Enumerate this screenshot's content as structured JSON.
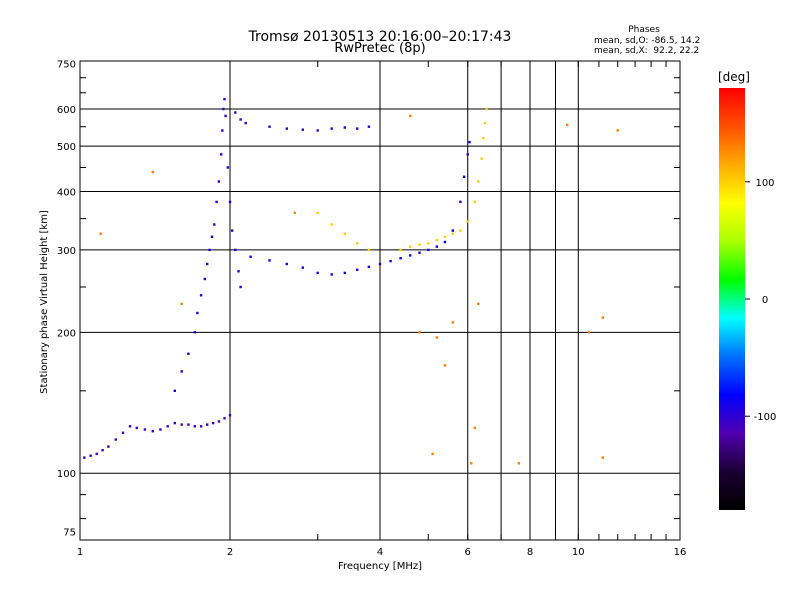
{
  "chart_data": {
    "type": "scatter",
    "title": "Tromsø 20130513 20:16:00–20:17:43",
    "subtitle": "RwPretec (8p)",
    "xlabel": "Frequency [MHz]",
    "ylabel": "Stationary phase Virtual Height [km]",
    "x_scale": "log",
    "y_scale": "log",
    "xlim": [
      1,
      16
    ],
    "ylim": [
      72,
      760
    ],
    "x_ticks": [
      1,
      2,
      4,
      6,
      8,
      10,
      16
    ],
    "y_ticks": [
      75,
      100,
      200,
      300,
      400,
      500,
      600,
      750
    ],
    "x_minor_lines": [
      7,
      9
    ],
    "grid": true,
    "stats": {
      "title": "Phases",
      "line1": "mean, sd,O: -86.5, 14.2",
      "line2": "mean, sd,X:  92.2, 22.2"
    },
    "colorbar": {
      "label": "[deg]",
      "range": [
        -180,
        180
      ],
      "ticks": [
        -100,
        0,
        100
      ],
      "tick_labels": [
        "-100",
        "0",
        "100"
      ],
      "colormap": [
        "#000000",
        "#1a0033",
        "#5000b0",
        "#0000ff",
        "#0070ff",
        "#00ffff",
        "#00ff00",
        "#aaff00",
        "#ffff00",
        "#ffaa00",
        "#ff5000",
        "#ff0000"
      ]
    },
    "series": [
      {
        "trace": "o-mode-low",
        "phase": -105,
        "points": [
          [
            1.02,
            108
          ],
          [
            1.05,
            109
          ],
          [
            1.08,
            110
          ],
          [
            1.11,
            112
          ],
          [
            1.14,
            114
          ],
          [
            1.18,
            118
          ],
          [
            1.22,
            122
          ],
          [
            1.26,
            126
          ],
          [
            1.3,
            125
          ],
          [
            1.35,
            124
          ],
          [
            1.4,
            123
          ],
          [
            1.45,
            124
          ],
          [
            1.5,
            126
          ],
          [
            1.55,
            128
          ],
          [
            1.6,
            127
          ],
          [
            1.65,
            127
          ],
          [
            1.7,
            126
          ],
          [
            1.75,
            126
          ],
          [
            1.8,
            127
          ],
          [
            1.85,
            128
          ],
          [
            1.9,
            129
          ],
          [
            1.95,
            131
          ],
          [
            2.0,
            133
          ]
        ]
      },
      {
        "trace": "o-mode-spread-F-low",
        "phase": -95,
        "points": [
          [
            1.55,
            150
          ],
          [
            1.6,
            165
          ],
          [
            1.65,
            180
          ],
          [
            1.7,
            200
          ],
          [
            1.72,
            220
          ],
          [
            1.75,
            240
          ],
          [
            1.78,
            260
          ],
          [
            1.8,
            280
          ],
          [
            1.82,
            300
          ],
          [
            1.84,
            320
          ],
          [
            1.86,
            340
          ],
          [
            1.88,
            380
          ],
          [
            1.9,
            420
          ],
          [
            1.92,
            480
          ],
          [
            1.93,
            540
          ],
          [
            1.94,
            600
          ],
          [
            1.95,
            630
          ],
          [
            1.96,
            580
          ],
          [
            1.98,
            450
          ],
          [
            2.0,
            380
          ],
          [
            2.02,
            330
          ],
          [
            2.05,
            300
          ],
          [
            2.08,
            270
          ],
          [
            2.1,
            250
          ]
        ]
      },
      {
        "trace": "F-trace",
        "phase": -90,
        "points": [
          [
            2.2,
            290
          ],
          [
            2.4,
            285
          ],
          [
            2.6,
            280
          ],
          [
            2.8,
            275
          ],
          [
            3.0,
            268
          ],
          [
            3.2,
            266
          ],
          [
            3.4,
            268
          ],
          [
            3.6,
            272
          ],
          [
            3.8,
            276
          ],
          [
            4.0,
            280
          ],
          [
            4.2,
            284
          ],
          [
            4.4,
            288
          ],
          [
            4.6,
            292
          ],
          [
            4.8,
            296
          ],
          [
            5.0,
            300
          ],
          [
            5.2,
            305
          ],
          [
            5.4,
            312
          ],
          [
            5.6,
            330
          ],
          [
            5.8,
            380
          ],
          [
            5.9,
            430
          ],
          [
            6.0,
            480
          ],
          [
            6.05,
            510
          ]
        ]
      },
      {
        "trace": "upper-F-echoes",
        "phase": -100,
        "points": [
          [
            2.05,
            590
          ],
          [
            2.1,
            570
          ],
          [
            2.15,
            560
          ],
          [
            2.4,
            550
          ],
          [
            2.6,
            545
          ],
          [
            2.8,
            542
          ],
          [
            3.0,
            540
          ],
          [
            3.2,
            545
          ],
          [
            3.4,
            548
          ],
          [
            3.6,
            545
          ],
          [
            3.8,
            550
          ]
        ]
      },
      {
        "trace": "x-mode",
        "phase": 100,
        "points": [
          [
            3.0,
            360
          ],
          [
            3.2,
            340
          ],
          [
            3.4,
            325
          ],
          [
            3.6,
            310
          ],
          [
            3.8,
            300
          ],
          [
            4.4,
            300
          ],
          [
            4.6,
            305
          ],
          [
            4.8,
            308
          ],
          [
            5.0,
            310
          ],
          [
            5.2,
            315
          ],
          [
            5.4,
            320
          ],
          [
            5.6,
            325
          ],
          [
            5.8,
            330
          ],
          [
            6.0,
            345
          ],
          [
            6.2,
            380
          ],
          [
            6.3,
            420
          ],
          [
            6.4,
            470
          ],
          [
            6.45,
            520
          ],
          [
            6.5,
            560
          ],
          [
            6.55,
            600
          ]
        ]
      },
      {
        "trace": "scattered-noise",
        "phase": 130,
        "points": [
          [
            1.1,
            325
          ],
          [
            1.4,
            440
          ],
          [
            1.6,
            230
          ],
          [
            2.7,
            360
          ],
          [
            4.6,
            580
          ],
          [
            4.8,
            200
          ],
          [
            5.1,
            110
          ],
          [
            5.2,
            195
          ],
          [
            5.4,
            170
          ],
          [
            5.6,
            210
          ],
          [
            6.1,
            105
          ],
          [
            6.2,
            125
          ],
          [
            6.3,
            230
          ],
          [
            7.6,
            105
          ],
          [
            9.5,
            555
          ],
          [
            10.5,
            200
          ],
          [
            11.2,
            215
          ],
          [
            11.2,
            108
          ],
          [
            12.0,
            540
          ]
        ]
      }
    ]
  }
}
